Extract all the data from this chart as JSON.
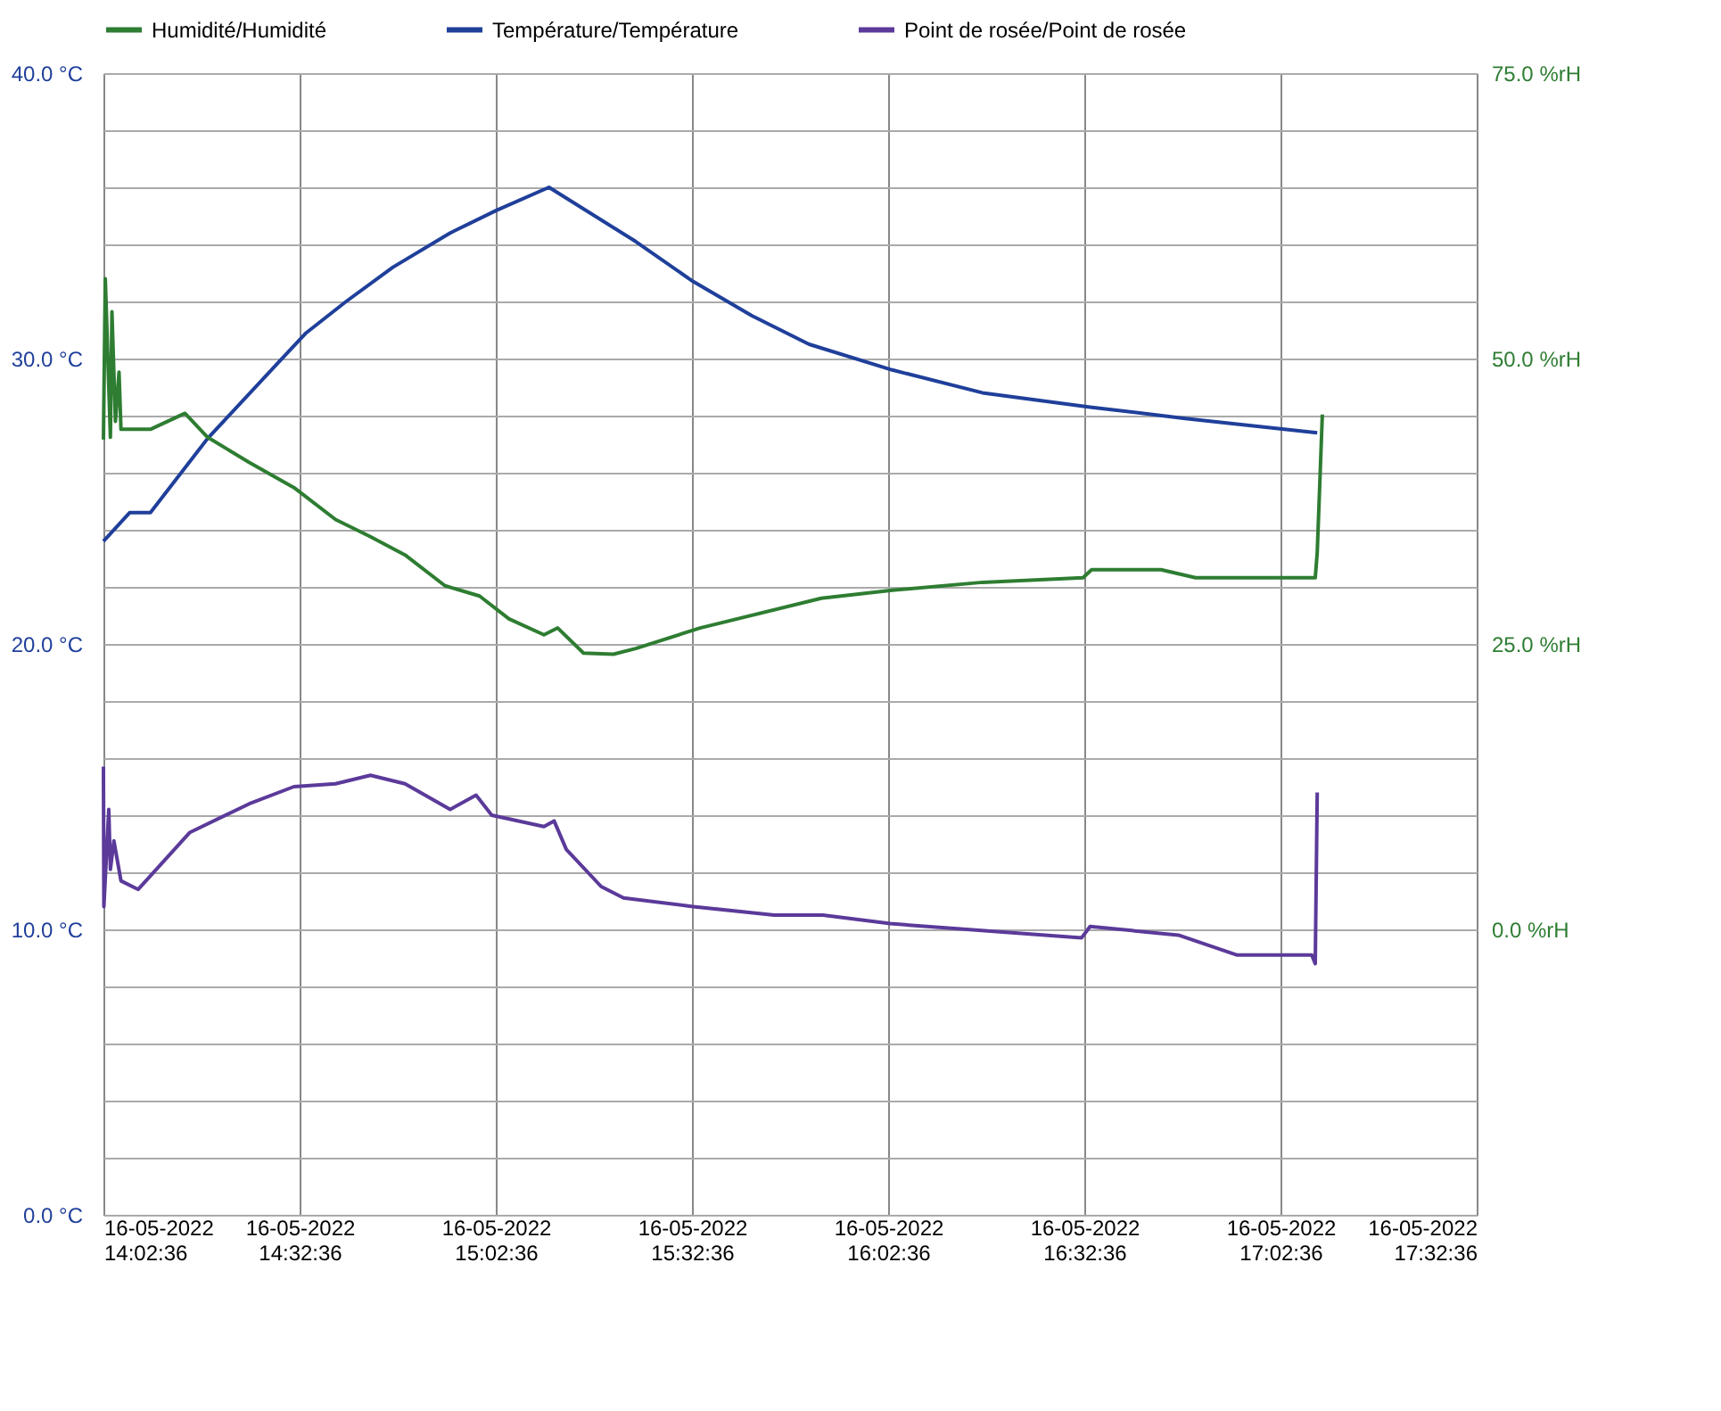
{
  "chart_data": {
    "type": "line",
    "legend": "top",
    "grid": true,
    "marker": "none",
    "line_style": "solid",
    "xlim": [
      "2022-05-16T14:02:36",
      "2022-05-16T17:32:36"
    ],
    "xticks": [
      {
        "value": "2022-05-16T14:02:36",
        "label": "16-05-2022 14:02:36"
      },
      {
        "value": "2022-05-16T14:32:36",
        "label": "16-05-2022 14:32:36"
      },
      {
        "value": "2022-05-16T15:02:36",
        "label": "16-05-2022 15:02:36"
      },
      {
        "value": "2022-05-16T15:32:36",
        "label": "16-05-2022 15:32:36"
      },
      {
        "value": "2022-05-16T16:02:36",
        "label": "16-05-2022 16:02:36"
      },
      {
        "value": "2022-05-16T16:32:36",
        "label": "16-05-2022 16:32:36"
      },
      {
        "value": "2022-05-16T17:02:36",
        "label": "16-05-2022 17:02:36"
      },
      {
        "value": "2022-05-16T17:32:36",
        "label": "16-05-2022 17:32:36"
      }
    ],
    "ylim": [
      0,
      40
    ],
    "yticks": [
      {
        "value": 0,
        "label": "0.0 °C"
      },
      {
        "value": 2,
        "label": null
      },
      {
        "value": 4,
        "label": null
      },
      {
        "value": 6,
        "label": null
      },
      {
        "value": 8,
        "label": null
      },
      {
        "value": 10,
        "label": "10.0 °C"
      },
      {
        "value": 12,
        "label": null
      },
      {
        "value": 14,
        "label": null
      },
      {
        "value": 16,
        "label": null
      },
      {
        "value": 18,
        "label": null
      },
      {
        "value": 20,
        "label": "20.0 °C"
      },
      {
        "value": 22,
        "label": null
      },
      {
        "value": 24,
        "label": null
      },
      {
        "value": 26,
        "label": null
      },
      {
        "value": 28,
        "label": null
      },
      {
        "value": 30,
        "label": "30.0 °C"
      },
      {
        "value": 32,
        "label": null
      },
      {
        "value": 34,
        "label": null
      },
      {
        "value": 36,
        "label": null
      },
      {
        "value": 38,
        "label": null
      },
      {
        "value": 40,
        "label": "40.0 °C"
      }
    ],
    "y2lim": [
      -25,
      75
    ],
    "y2ticks": [
      {
        "value": 0,
        "label": "0.0 %rH"
      },
      {
        "value": 25,
        "label": "25.0 %rH"
      },
      {
        "value": 50,
        "label": "50.0 %rH"
      },
      {
        "value": 75,
        "label": "75.0 %rH"
      }
    ],
    "series": [
      {
        "name": "Humidité/Humidité",
        "color": "#2e7d32",
        "axis": "y2",
        "x": [
          "2022-05-16T14:02:36",
          "2022-05-16T14:02:53",
          "2022-05-16T14:03:40",
          "2022-05-16T14:03:54",
          "2022-05-16T14:04:26",
          "2022-05-16T14:04:59",
          "2022-05-16T14:05:17",
          "2022-05-16T14:09:47",
          "2022-05-16T14:15:04",
          "2022-05-16T14:18:32",
          "2022-05-16T14:24:54",
          "2022-05-16T14:31:44",
          "2022-05-16T14:38:06",
          "2022-05-16T14:43:26",
          "2022-05-16T14:48:43",
          "2022-05-16T14:54:50",
          "2022-05-16T15:00:07",
          "2022-05-16T15:04:37",
          "2022-05-16T15:09:58",
          "2022-05-16T15:12:04",
          "2022-05-16T15:16:01",
          "2022-05-16T15:20:35",
          "2022-05-16T15:24:00",
          "2022-05-16T15:33:50",
          "2022-05-16T15:52:23",
          "2022-05-16T16:03:14",
          "2022-05-16T16:17:02",
          "2022-05-16T16:32:24",
          "2022-05-16T16:33:43",
          "2022-05-16T16:44:20",
          "2022-05-16T16:49:37",
          "2022-05-16T17:07:55",
          "2022-05-16T17:08:13",
          "2022-05-16T17:09:00"
        ],
        "values": [
          42.9,
          57.0,
          43.1,
          54.1,
          44.5,
          48.8,
          43.8,
          43.8,
          45.2,
          43.1,
          40.9,
          38.7,
          35.9,
          34.4,
          32.8,
          30.1,
          29.2,
          27.2,
          25.8,
          26.4,
          24.2,
          24.1,
          24.6,
          26.4,
          29.0,
          29.7,
          30.4,
          30.8,
          31.5,
          31.5,
          30.8,
          30.8,
          33.0,
          45.1
        ]
      },
      {
        "name": "Température/Température",
        "color": "#1f3f9a",
        "x": [
          "2022-05-16T14:02:36",
          "2022-05-16T14:06:36",
          "2022-05-16T14:09:47",
          "2022-05-16T14:18:32",
          "2022-05-16T14:29:06",
          "2022-05-16T14:33:36",
          "2022-05-16T14:39:43",
          "2022-05-16T14:46:52",
          "2022-05-16T14:55:37",
          "2022-05-16T15:02:46",
          "2022-05-16T15:10:44",
          "2022-05-16T15:24:00",
          "2022-05-16T15:32:46",
          "2022-05-16T15:41:46",
          "2022-05-16T15:50:31",
          "2022-05-16T16:03:14",
          "2022-05-16T16:17:02",
          "2022-05-16T16:33:29",
          "2022-05-16T16:48:04",
          "2022-05-16T17:08:13"
        ],
        "values": [
          23.6,
          24.6,
          24.6,
          27.2,
          29.8,
          30.9,
          32.0,
          33.2,
          34.4,
          35.2,
          36.0,
          34.1,
          32.7,
          31.5,
          30.5,
          29.6,
          28.8,
          28.3,
          27.9,
          27.4
        ]
      },
      {
        "name": "Point de rosée/Point de rosée",
        "color": "#5b3a9a",
        "x": [
          "2022-05-16T14:02:36",
          "2022-05-16T14:02:40",
          "2022-05-16T14:03:25",
          "2022-05-16T14:03:40",
          "2022-05-16T14:04:12",
          "2022-05-16T14:05:17",
          "2022-05-16T14:07:55",
          "2022-05-16T14:15:50",
          "2022-05-16T14:24:54",
          "2022-05-16T14:31:44",
          "2022-05-16T14:38:06",
          "2022-05-16T14:43:26",
          "2022-05-16T14:48:43",
          "2022-05-16T14:55:37",
          "2022-05-16T14:59:35",
          "2022-05-16T15:01:59",
          "2022-05-16T15:09:58",
          "2022-05-16T15:11:31",
          "2022-05-16T15:13:23",
          "2022-05-16T15:18:43",
          "2022-05-16T15:22:08",
          "2022-05-16T15:32:46",
          "2022-05-16T15:45:11",
          "2022-05-16T15:52:37",
          "2022-05-16T16:02:56",
          "2022-05-16T16:32:10",
          "2022-05-16T16:33:29",
          "2022-05-16T16:46:59",
          "2022-05-16T16:55:59",
          "2022-05-16T17:07:23",
          "2022-05-16T17:07:55",
          "2022-05-16T17:08:13"
        ],
        "values": [
          15.7,
          10.8,
          14.2,
          12.1,
          13.1,
          11.7,
          11.4,
          13.4,
          14.4,
          15.0,
          15.1,
          15.4,
          15.1,
          14.2,
          14.7,
          14.0,
          13.6,
          13.8,
          12.8,
          11.5,
          11.1,
          10.8,
          10.5,
          10.5,
          10.2,
          9.7,
          10.1,
          9.8,
          9.1,
          9.1,
          8.8,
          14.8
        ]
      }
    ]
  }
}
